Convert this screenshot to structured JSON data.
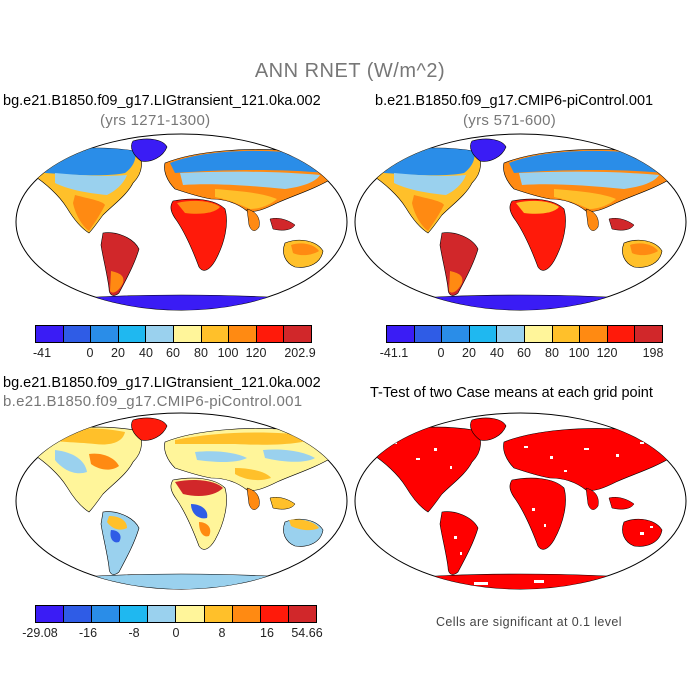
{
  "figure": {
    "title": "ANN RNET (W/m^2)"
  },
  "panels": {
    "case1": {
      "title": "bg.e21.B1850.f09_g17.LIGtransient_121.0ka.002",
      "subtitle": "(yrs 1271-1300)",
      "colorbar_labels": [
        "-41",
        "0",
        "20",
        "40",
        "60",
        "80",
        "100",
        "120",
        "202.9"
      ]
    },
    "case2": {
      "title": "b.e21.B1850.f09_g17.CMIP6-piControl.001",
      "subtitle": "(yrs 571-600)",
      "colorbar_labels": [
        "-41.1",
        "0",
        "20",
        "40",
        "60",
        "80",
        "100",
        "120",
        "198"
      ]
    },
    "diff": {
      "title": "bg.e21.B1850.f09_g17.LIGtransient_121.0ka.002",
      "subtitle": "b.e21.B1850.f09_g17.CMIP6-piControl.001",
      "colorbar_labels": [
        "-29.08",
        "-16",
        "-8",
        "0",
        "8",
        "16",
        "54.66"
      ]
    },
    "ttest": {
      "title": "T-Test of two Case means at each grid point",
      "note": "Cells are significant at 0.1 level"
    }
  },
  "colors": {
    "abs_scale": [
      "#3a1cf5",
      "#2f5ce6",
      "#2a8de8",
      "#1fb8f0",
      "#9ad1ee",
      "#fff59a",
      "#ffc02a",
      "#ff8a12",
      "#ff1a0a",
      "#d1272a"
    ],
    "diff_scale": [
      "#3a1cf5",
      "#2f5ce6",
      "#2a8de8",
      "#1fb8f0",
      "#9ad1ee",
      "#fff59a",
      "#ffc02a",
      "#ff8a12",
      "#ff1a0a",
      "#d1272a"
    ],
    "significant": "#ff0000"
  }
}
